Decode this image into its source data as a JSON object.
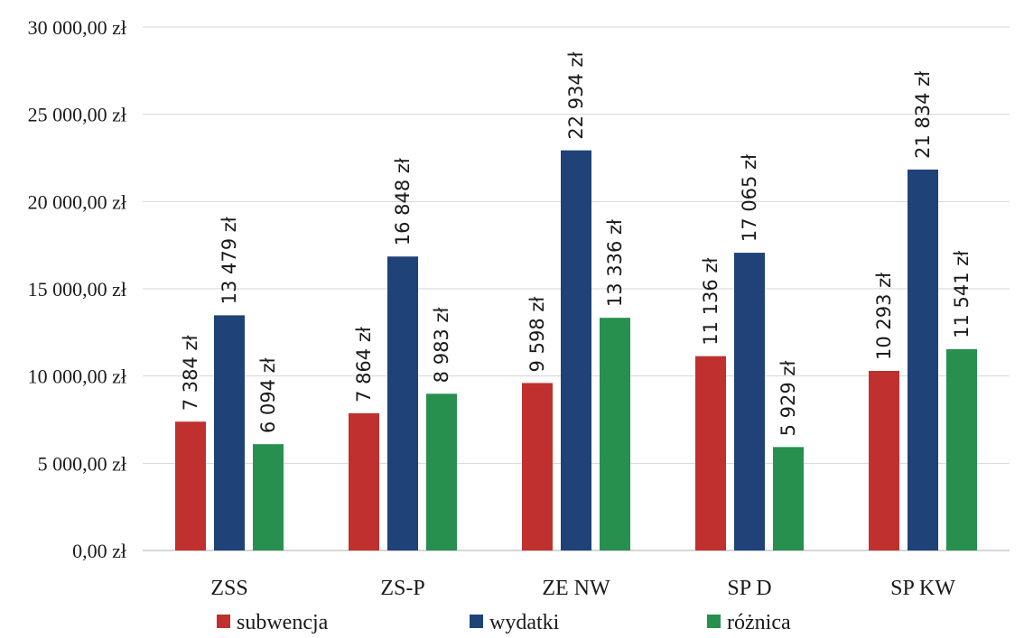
{
  "chart_data": {
    "type": "bar",
    "title": "",
    "xlabel": "",
    "ylabel": "",
    "ylim": [
      0,
      30000
    ],
    "yticks": [
      0,
      5000,
      10000,
      15000,
      20000,
      25000,
      30000
    ],
    "ytick_labels": [
      "0,00 zł",
      "5 000,00 zł",
      "10 000,00 zł",
      "15 000,00 zł",
      "20 000,00 zł",
      "25 000,00 zł",
      "30 000,00 zł"
    ],
    "categories": [
      "ZSS",
      "ZS-P",
      "ZE NW",
      "SP D",
      "SP KW"
    ],
    "series": [
      {
        "name": "subwencja",
        "color": "#c0302e",
        "values": [
          7384,
          7864,
          9598,
          11136,
          10293
        ],
        "labels": [
          "7 384 zł",
          "7 864 zł",
          "9 598 zł",
          "11 136 zł",
          "10 293 zł"
        ]
      },
      {
        "name": "wydatki",
        "color": "#1f4278",
        "values": [
          13479,
          16848,
          22934,
          17065,
          21834
        ],
        "labels": [
          "13 479 zł",
          "16 848 zł",
          "22 934 zł",
          "17 065 zł",
          "21 834 zł"
        ]
      },
      {
        "name": "różnica",
        "color": "#27904f",
        "values": [
          6094,
          8983,
          13336,
          5929,
          11541
        ],
        "labels": [
          "6 094 zł",
          "8 983 zł",
          "13 336 zł",
          "5 929 zł",
          "11 541 zł"
        ]
      }
    ],
    "grid": true,
    "legend": "bottom",
    "data_labels": "rotated-vertical"
  }
}
